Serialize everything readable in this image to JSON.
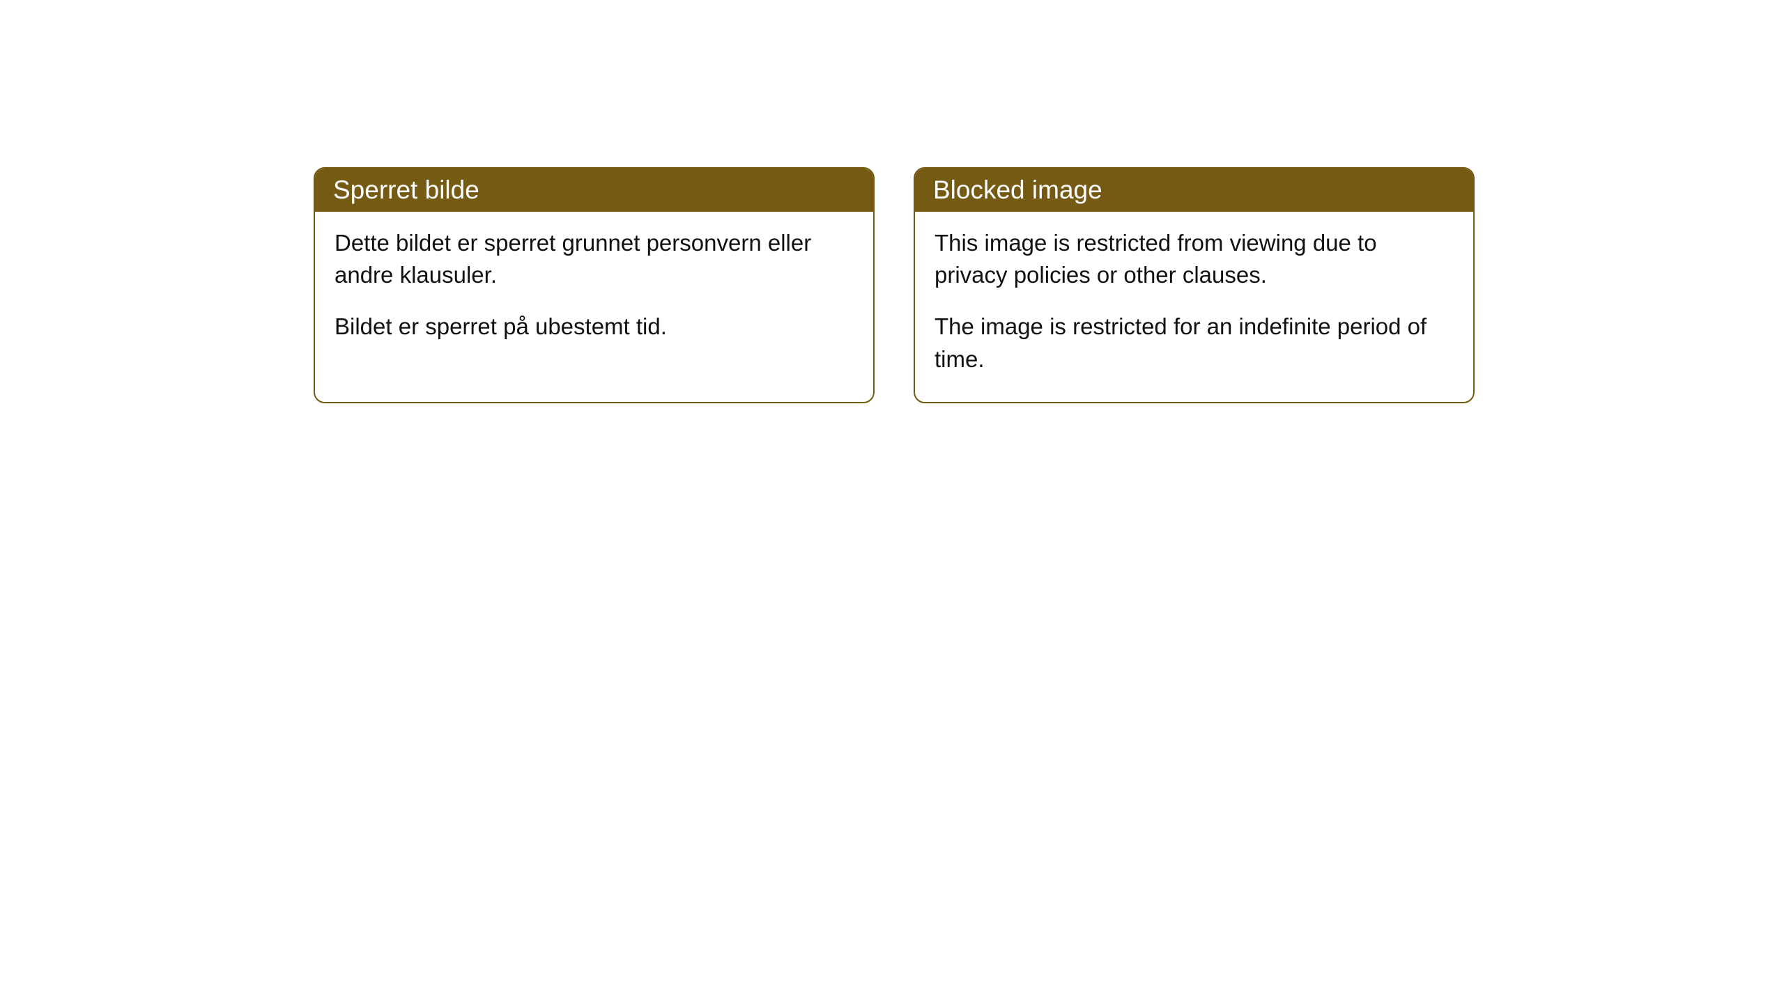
{
  "cards": [
    {
      "header": "Sperret bilde",
      "paragraph1": "Dette bildet er sperret grunnet personvern eller andre klausuler.",
      "paragraph2": "Bildet er sperret på ubestemt tid."
    },
    {
      "header": "Blocked image",
      "paragraph1": "This image is restricted from viewing due to privacy policies or other clauses.",
      "paragraph2": "The image is restricted for an indefinite period of time."
    }
  ],
  "styling": {
    "header_background": "#755a13",
    "header_text_color": "#ffffff",
    "border_color": "#755a13",
    "body_background": "#ffffff",
    "body_text_color": "#111111",
    "border_radius": 16,
    "header_fontsize": 37,
    "body_fontsize": 33
  }
}
